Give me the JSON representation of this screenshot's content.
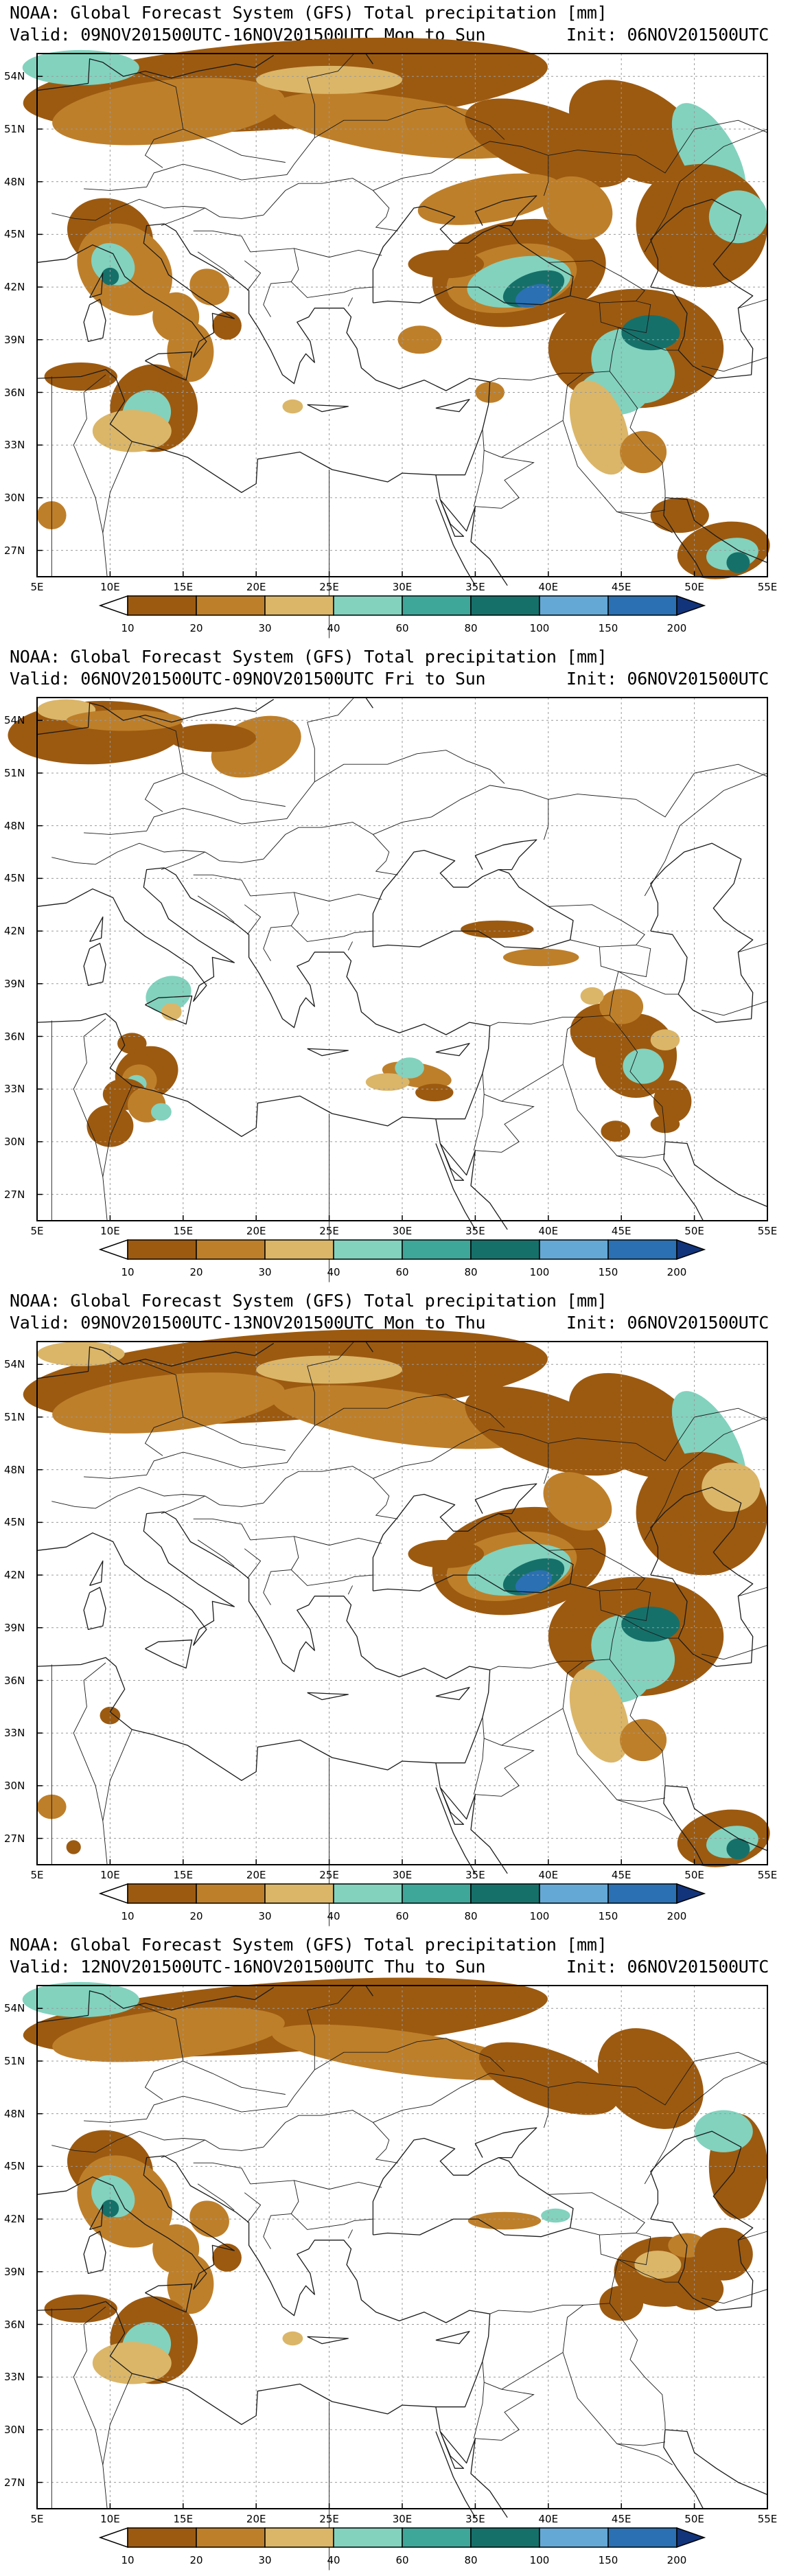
{
  "colors": {
    "background": "#ffffff",
    "ocean_and_land": "#ffffff",
    "gridline": "#9a9a9a",
    "border": "#1a1a1a",
    "precip_scale": [
      "#9c5a10",
      "#be7f2a",
      "#dbb669",
      "#82d2be",
      "#3fa69a",
      "#16706a",
      "#64a8d6",
      "#2a70b2",
      "#12347a"
    ]
  },
  "map": {
    "lat_labels": [
      "54N",
      "51N",
      "48N",
      "45N",
      "42N",
      "39N",
      "36N",
      "33N",
      "30N",
      "27N"
    ],
    "lon_labels": [
      "5E",
      "10E",
      "15E",
      "20E",
      "25E",
      "30E",
      "35E",
      "40E",
      "45E",
      "50E",
      "55E"
    ]
  },
  "colorbar": {
    "labels": [
      "10",
      "20",
      "30",
      "40",
      "60",
      "80",
      "100",
      "150",
      "200"
    ]
  },
  "panels": [
    {
      "title": "NOAA: Global Forecast System (GFS) Total precipitation [mm]",
      "valid": "Valid: 09NOV201500UTC-16NOV201500UTC Mon to Sun",
      "init": "Init: 06NOV201500UTC",
      "coverage": "full"
    },
    {
      "title": "NOAA: Global Forecast System (GFS) Total precipitation [mm]",
      "valid": "Valid: 06NOV201500UTC-09NOV201500UTC Fri to Sun",
      "init": "Init: 06NOV201500UTC",
      "coverage": "light"
    },
    {
      "title": "NOAA: Global Forecast System (GFS) Total precipitation [mm]",
      "valid": "Valid: 09NOV201500UTC-13NOV201500UTC Mon to Thu",
      "init": "Init: 06NOV201500UTC",
      "coverage": "north-east"
    },
    {
      "title": "NOAA: Global Forecast System (GFS) Total precipitation [mm]",
      "valid": "Valid: 12NOV201500UTC-16NOV201500UTC Thu to Sun",
      "init": "Init: 06NOV201500UTC",
      "coverage": "west"
    }
  ]
}
